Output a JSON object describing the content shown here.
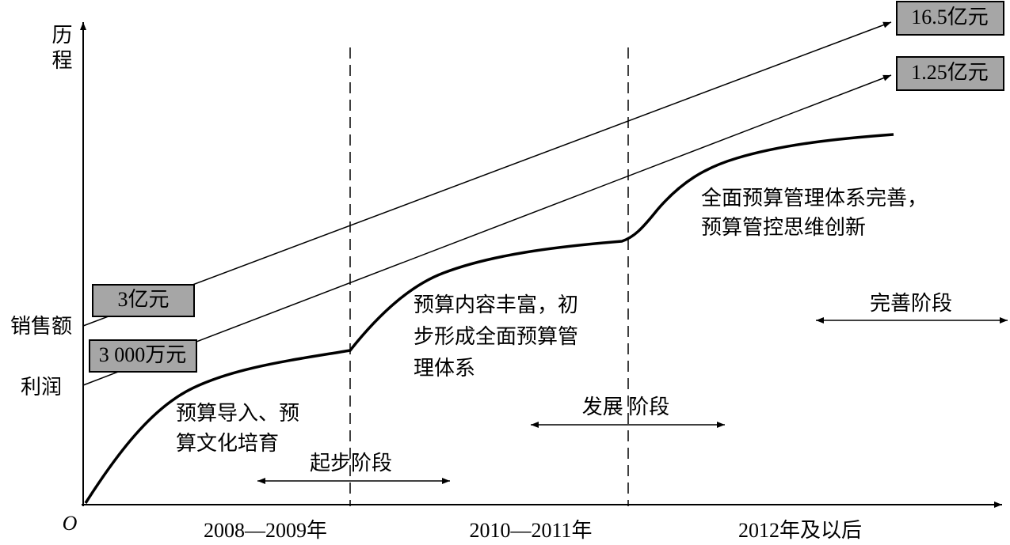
{
  "axis": {
    "y_label": "历程",
    "origin": "O"
  },
  "y_labels": [
    "销售额",
    "利润"
  ],
  "boxes": {
    "sales_start": "3亿元",
    "profit_start": "3 000万元",
    "sales_end": "16.5亿元",
    "profit_end": "1.25亿元"
  },
  "periods": [
    "2008—2009年",
    "2010—2011年",
    "2012年及以后"
  ],
  "stages": [
    "起步阶段",
    "发展 阶段",
    "完善阶段"
  ],
  "descriptions": [
    [
      "预算导入、预",
      "算文化培育"
    ],
    [
      "预算内容丰富，初",
      "步形成全面预算管",
      "理体系"
    ],
    [
      "全面预算管理体系完善，",
      "预算管控思维创新"
    ]
  ]
}
